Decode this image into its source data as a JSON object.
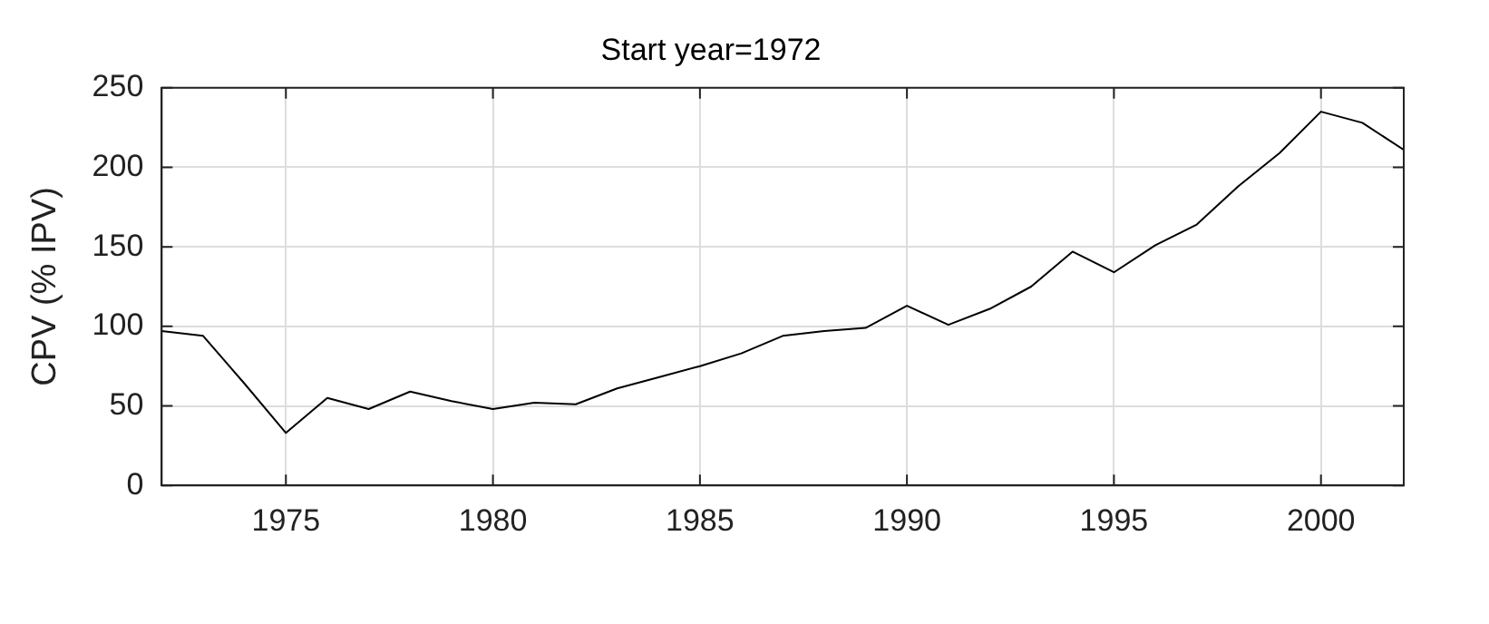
{
  "chart_data": {
    "type": "line",
    "title": "Start year=1972",
    "ylabel": "CPV (% IPV)",
    "x": [
      1972,
      1973,
      1974,
      1975,
      1976,
      1977,
      1978,
      1979,
      1980,
      1981,
      1982,
      1983,
      1984,
      1985,
      1986,
      1987,
      1988,
      1989,
      1990,
      1991,
      1992,
      1993,
      1994,
      1995,
      1996,
      1997,
      1998,
      1999,
      2000,
      2001,
      2002
    ],
    "series": [
      {
        "color": "#000000",
        "values": [
          97,
          94,
          64,
          33,
          55,
          48,
          59,
          53,
          48,
          52,
          51,
          61,
          68,
          75,
          83,
          94,
          97,
          99,
          113,
          101,
          111,
          125,
          147,
          134,
          151,
          164,
          188,
          209,
          235,
          228,
          211
        ]
      }
    ],
    "xlim": [
      1972,
      2002
    ],
    "xticks": [
      1975,
      1980,
      1985,
      1990,
      1995,
      2000
    ],
    "ylim": [
      0,
      250
    ],
    "yticks": [
      0,
      50,
      100,
      150,
      200,
      250
    ],
    "grid": true,
    "legend": false,
    "marker": "none",
    "line_style": "solid"
  }
}
